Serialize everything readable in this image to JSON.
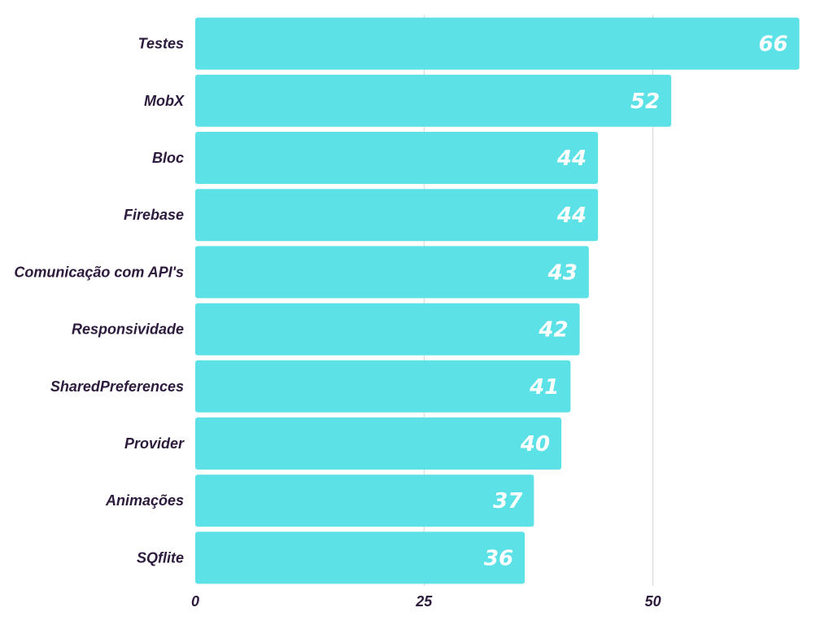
{
  "chart_data": {
    "type": "bar",
    "orientation": "horizontal",
    "title": "",
    "xlabel": "",
    "ylabel": "",
    "categories": [
      "Testes",
      "MobX",
      "Bloc",
      "Firebase",
      "Comunicação com API's",
      "Responsividade",
      "SharedPreferences",
      "Provider",
      "Animações",
      "SQflite"
    ],
    "values": [
      66,
      52,
      44,
      44,
      43,
      42,
      41,
      40,
      37,
      36
    ],
    "value_labels": [
      "66",
      "52",
      "44",
      "44",
      "43",
      "42",
      "41",
      "40",
      "37",
      "36"
    ],
    "xlim": [
      0,
      67
    ],
    "xticks": [
      0,
      25,
      50
    ],
    "xtick_labels": [
      "0",
      "25",
      "50"
    ],
    "grid": "vertical",
    "legend": "none",
    "bar_color": "#5ce1e6",
    "value_label_color": "#ffffff",
    "label_color": "#2d1b3d",
    "grid_color": "#d6d6d6"
  }
}
